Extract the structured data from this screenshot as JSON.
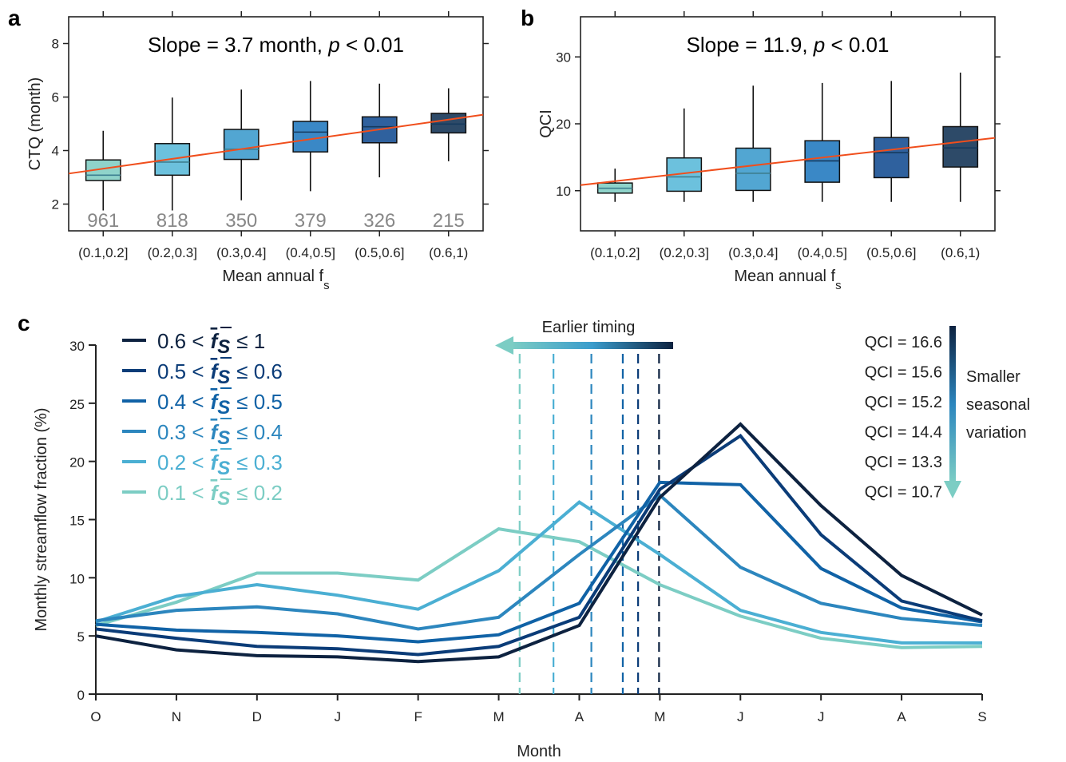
{
  "panel_labels": {
    "a": "a",
    "b": "b",
    "c": "c"
  },
  "chart_data": [
    {
      "type": "box",
      "panel": "a",
      "title": "Slope = 3.7 month, p < 0.01",
      "title_parts": {
        "pre": "Slope = 3.7 month, ",
        "italic": "p",
        "post": " < 0.01"
      },
      "xlabel": "Mean annual f",
      "xlabel_sub": "s",
      "ylabel": "CTQ (month)",
      "ylim": [
        1,
        9
      ],
      "yticks": [
        2,
        4,
        6,
        8
      ],
      "categories": [
        "(0.1,0.2]",
        "(0.2,0.3]",
        "(0.3,0.4]",
        "(0.4,0.5]",
        "(0.5,0.6]",
        "(0.6,1)"
      ],
      "counts": [
        "961",
        "818",
        "350",
        "379",
        "326",
        "215"
      ],
      "boxes": [
        {
          "whisker_low": 1.76,
          "q1": 2.88,
          "median": 3.08,
          "q3": 3.65,
          "whisker_high": 4.74
        },
        {
          "whisker_low": 1.76,
          "q1": 3.08,
          "median": 3.57,
          "q3": 4.26,
          "whisker_high": 5.98
        },
        {
          "whisker_low": 2.14,
          "q1": 3.67,
          "median": 4.05,
          "q3": 4.79,
          "whisker_high": 6.28
        },
        {
          "whisker_low": 2.48,
          "q1": 3.95,
          "median": 4.69,
          "q3": 5.09,
          "whisker_high": 6.6
        },
        {
          "whisker_low": 3.0,
          "q1": 4.29,
          "median": 4.89,
          "q3": 5.26,
          "whisker_high": 6.5
        },
        {
          "whisker_low": 3.6,
          "q1": 4.66,
          "median": 4.99,
          "q3": 5.39,
          "whisker_high": 6.33
        }
      ],
      "box_colors": [
        "#8fd3ca",
        "#6cc1dd",
        "#52a6d2",
        "#3a88c6",
        "#2f619e",
        "#2d4a68"
      ],
      "trend": {
        "start": 3.14,
        "end": 5.34,
        "color": "#f04e1c"
      }
    },
    {
      "type": "box",
      "panel": "b",
      "title": "Slope = 11.9, p < 0.01",
      "title_parts": {
        "pre": "Slope = 11.9, ",
        "italic": "p",
        "post": " < 0.01"
      },
      "xlabel": "Mean annual f",
      "xlabel_sub": "s",
      "ylabel": "QCI",
      "ylim": [
        4,
        36
      ],
      "yticks": [
        10,
        20,
        30
      ],
      "categories": [
        "(0.1,0.2]",
        "(0.2,0.3]",
        "(0.3,0.4]",
        "(0.4,0.5]",
        "(0.5,0.6]",
        "(0.6,1)"
      ],
      "boxes": [
        {
          "whisker_low": 8.33,
          "q1": 9.64,
          "median": 10.36,
          "q3": 11.15,
          "whisker_high": 13.3
        },
        {
          "whisker_low": 8.33,
          "q1": 9.92,
          "median": 12.07,
          "q3": 14.9,
          "whisker_high": 22.3
        },
        {
          "whisker_low": 8.33,
          "q1": 10.04,
          "median": 12.6,
          "q3": 16.36,
          "whisker_high": 25.7
        },
        {
          "whisker_low": 8.33,
          "q1": 11.27,
          "median": 14.45,
          "q3": 17.47,
          "whisker_high": 26.1
        },
        {
          "whisker_low": 8.33,
          "q1": 11.95,
          "median": 15.69,
          "q3": 17.95,
          "whisker_high": 26.4
        },
        {
          "whisker_low": 8.33,
          "q1": 13.54,
          "median": 16.4,
          "q3": 19.58,
          "whisker_high": 27.65
        }
      ],
      "box_colors": [
        "#8fd3ca",
        "#6cc1dd",
        "#52a6d2",
        "#3a88c6",
        "#2f619e",
        "#2d4a68"
      ],
      "trend": {
        "start": 10.83,
        "end": 17.9,
        "color": "#f04e1c"
      }
    },
    {
      "type": "line",
      "panel": "c",
      "xlabel": "Month",
      "ylabel": "Monthly streamflow fraction (%)",
      "ylim": [
        0,
        30
      ],
      "yticks": [
        0,
        5,
        10,
        15,
        20,
        25,
        30
      ],
      "categories": [
        "O",
        "N",
        "D",
        "J",
        "F",
        "M",
        "A",
        "M",
        "J",
        "J",
        "A",
        "S"
      ],
      "series": [
        {
          "legend": {
            "pre": "0.6 <",
            "var": "f",
            "sub": "S",
            "post": "≤ 1"
          },
          "color": "#0d2240",
          "qci": "QCI = 16.6",
          "centroid_month_index": 6.99,
          "values": [
            5.0,
            3.8,
            3.3,
            3.2,
            2.8,
            3.2,
            5.9,
            16.9,
            23.2,
            16.2,
            10.2,
            6.8
          ]
        },
        {
          "legend": {
            "pre": "0.5 <",
            "var": "f",
            "sub": "S",
            "post": "≤ 0.6"
          },
          "color": "#0b3c78",
          "qci": "QCI = 15.6",
          "centroid_month_index": 6.73,
          "values": [
            5.6,
            4.8,
            4.1,
            3.9,
            3.4,
            4.1,
            6.6,
            17.6,
            22.2,
            13.7,
            8.0,
            6.3
          ]
        },
        {
          "legend": {
            "pre": "0.4 <",
            "var": "f",
            "sub": "S",
            "post": "≤ 0.5"
          },
          "color": "#1062a6",
          "qci": "QCI = 15.2",
          "centroid_month_index": 6.54,
          "values": [
            6.0,
            5.5,
            5.3,
            5.0,
            4.5,
            5.1,
            7.8,
            18.2,
            18.0,
            10.8,
            7.4,
            6.2
          ]
        },
        {
          "legend": {
            "pre": "0.3 <",
            "var": "f",
            "sub": "S",
            "post": "≤ 0.4"
          },
          "color": "#2c86be",
          "qci": "QCI = 14.4",
          "centroid_month_index": 6.15,
          "values": [
            6.3,
            7.2,
            7.5,
            6.9,
            5.6,
            6.6,
            12.0,
            17.1,
            10.9,
            7.8,
            6.5,
            5.9
          ]
        },
        {
          "legend": {
            "pre": "0.2 <",
            "var": "f",
            "sub": "S",
            "post": "≤ 0.3"
          },
          "color": "#4bafd3",
          "qci": "QCI = 13.3",
          "centroid_month_index": 5.68,
          "values": [
            6.2,
            8.4,
            9.4,
            8.5,
            7.3,
            10.6,
            16.5,
            12.0,
            7.2,
            5.3,
            4.4,
            4.4
          ]
        },
        {
          "legend": {
            "pre": "0.1 <",
            "var": "f",
            "sub": "S",
            "post": "≤ 0.2"
          },
          "color": "#7ccdc4",
          "qci": "QCI = 10.7",
          "centroid_month_index": 5.26,
          "values": [
            5.9,
            7.9,
            10.4,
            10.4,
            9.8,
            14.2,
            13.1,
            9.4,
            6.7,
            4.8,
            4.0,
            4.1
          ]
        }
      ],
      "annotations": {
        "timing_arrow": "Earlier timing",
        "variation_arrow": [
          "Smaller",
          "seasonal",
          "variation"
        ]
      }
    }
  ]
}
